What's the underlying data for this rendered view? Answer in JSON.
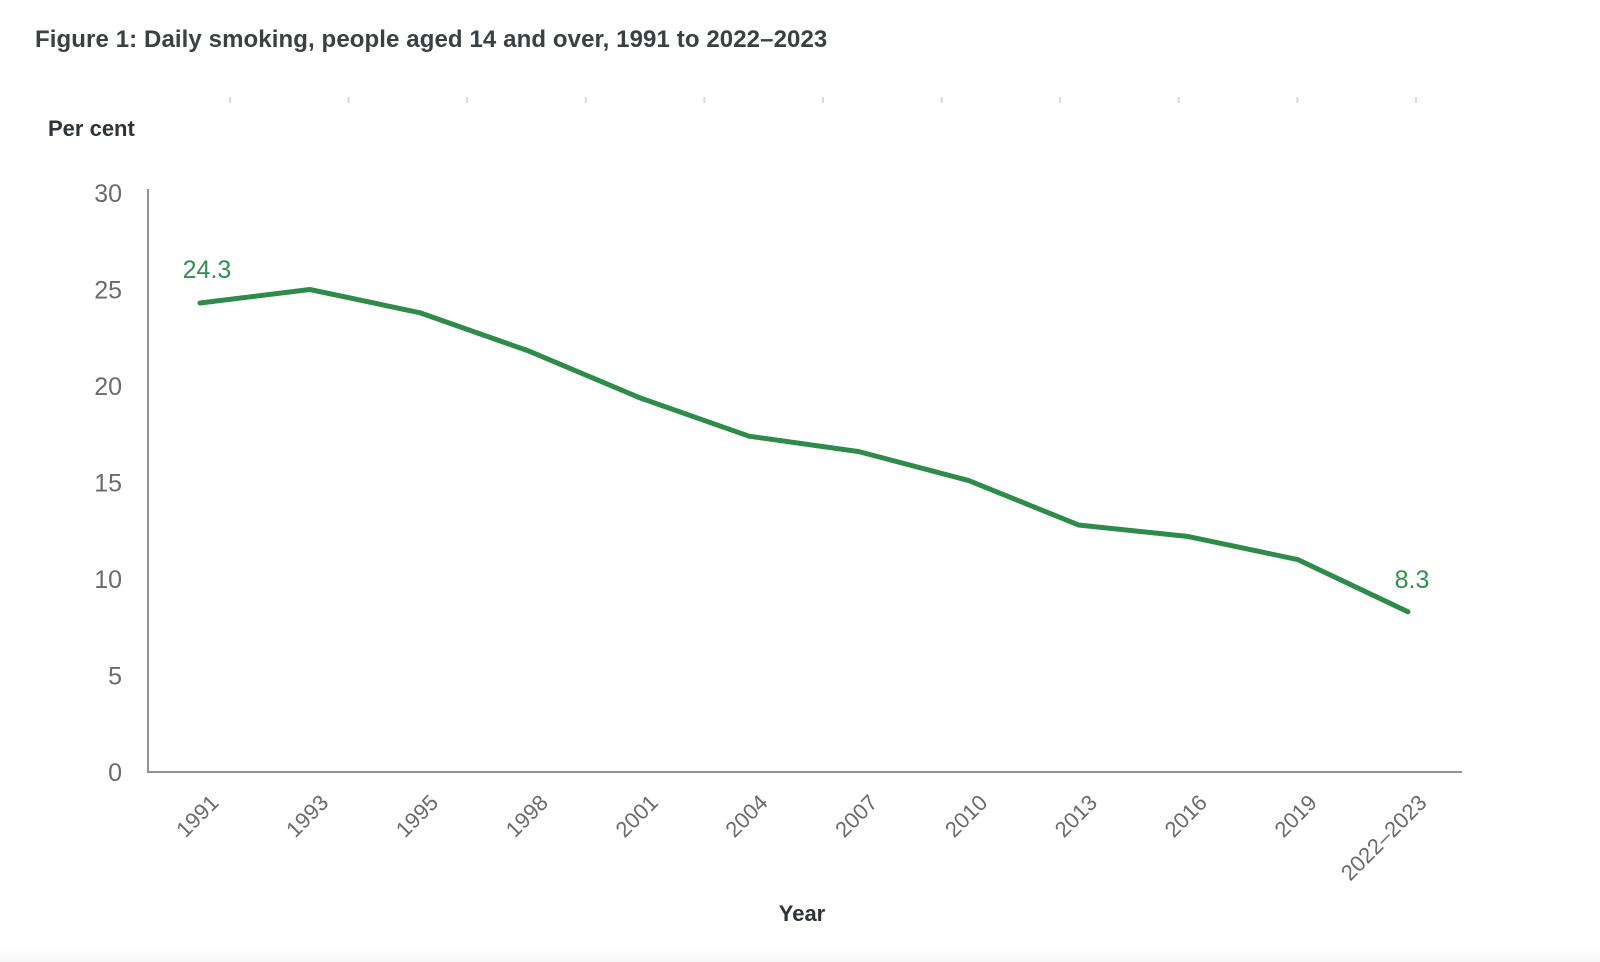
{
  "page": {
    "title": "Figure 1: Daily smoking, people aged 14 and over, 1991 to 2022–2023"
  },
  "chart_data": {
    "type": "line",
    "title": "Figure 1: Daily smoking, people aged 14 and over, 1991 to 2022–2023",
    "categories": [
      "1991",
      "1993",
      "1995",
      "1998",
      "2001",
      "2004",
      "2007",
      "2010",
      "2013",
      "2016",
      "2019",
      "2022–2023"
    ],
    "series": [
      {
        "name": "Daily smoking",
        "values": [
          24.3,
          25.0,
          23.8,
          21.8,
          19.4,
          17.4,
          16.6,
          15.1,
          12.8,
          12.2,
          11.0,
          8.3
        ]
      }
    ],
    "xlabel": "Year",
    "ylabel": "Per cent",
    "ylim": [
      0,
      30
    ],
    "yticks": [
      0,
      5,
      10,
      15,
      20,
      25,
      30
    ],
    "grid": false,
    "legend": "none",
    "annotations": [
      {
        "index": 0,
        "text": "24.3"
      },
      {
        "index": 11,
        "text": "8.3"
      }
    ],
    "colors": {
      "line": "#2e8b4a",
      "data_label": "#2f9150",
      "axis": "#949494",
      "tick_label": "#6b6b6b",
      "top_tick": "#d9d9d9"
    }
  }
}
